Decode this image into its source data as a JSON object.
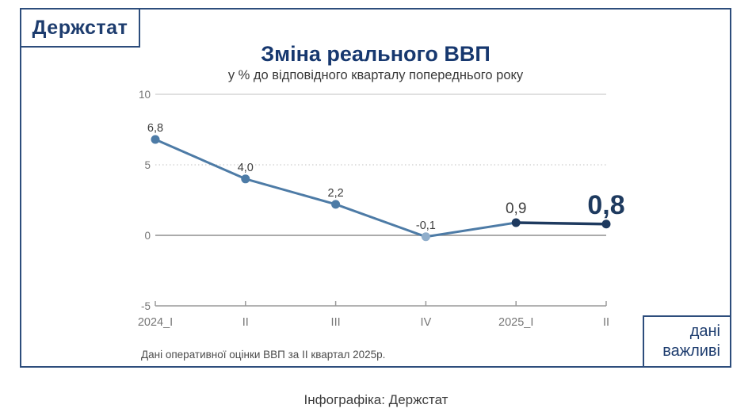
{
  "logo": {
    "text": "Держстат"
  },
  "title": "Зміна реального ВВП",
  "subtitle": "у % до відповідного кварталу попереднього року",
  "footnote": "Дані оперативної оцінки ВВП за II квартал 2025р.",
  "caption": "Інфографіка: Держстат",
  "badge": {
    "line1": "дані",
    "line2": "важливі"
  },
  "chart_data": {
    "type": "line",
    "title": "Зміна реального ВВП",
    "subtitle": "у % до відповідного кварталу попереднього року",
    "categories": [
      "2024_I",
      "II",
      "III",
      "IV",
      "2025_I",
      "II"
    ],
    "values": [
      6.8,
      4.0,
      2.2,
      -0.1,
      0.9,
      0.8
    ],
    "point_labels": [
      "6,8",
      "4,0",
      "2,2",
      "-0,1",
      "0,9",
      "0,8"
    ],
    "label_emphasis": [
      "normal",
      "normal",
      "normal",
      "normal",
      "medium",
      "large"
    ],
    "marker_styles": [
      "line",
      "line",
      "line",
      "muted",
      "highlight",
      "highlight"
    ],
    "highlight_segment_index": 4,
    "yticks": [
      10,
      5,
      0,
      -5
    ],
    "ylim": [
      -5,
      10
    ],
    "grid": "horizontal",
    "legend": false,
    "colors": {
      "line": "#4d7ba6",
      "highlight": "#1e3a5f",
      "muted_marker": "#90aecb",
      "grid": "#c2c2c2",
      "zero_line": "#8f8f8f",
      "axis": "#9a9a9a",
      "tick_label": "#757575",
      "data_label": "#3d3d3d",
      "frame": "#2d4d7c",
      "brand_text": "#1d3c6e"
    }
  }
}
